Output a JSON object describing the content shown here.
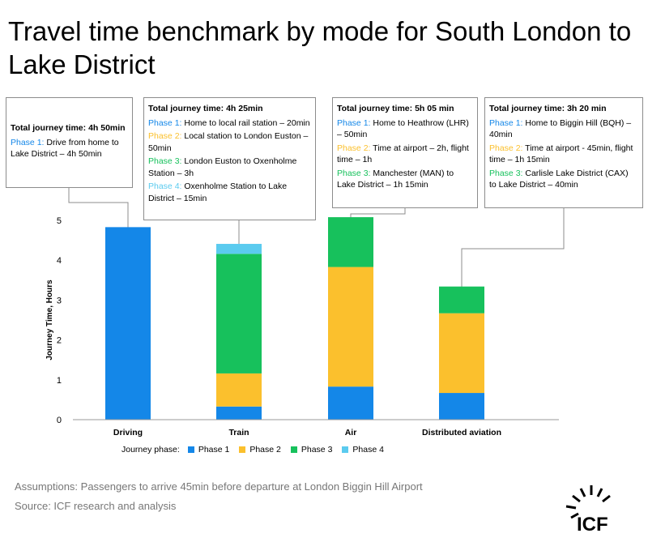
{
  "title": "Travel time benchmark by mode for South London to Lake District",
  "colors": {
    "phase1": "#1487e8",
    "phase2": "#fbc02d",
    "phase3": "#17c15c",
    "phase4": "#5bcbef",
    "axis": "#999999",
    "callout_border": "#8c8c8c"
  },
  "callouts": [
    {
      "total": "Total journey time: 4h 50min",
      "phases": [
        {
          "label": "Phase 1:",
          "text": " Drive from home to Lake District – 4h 50min",
          "color": "#1487e8"
        }
      ]
    },
    {
      "total": "Total journey time: 4h 25min",
      "phases": [
        {
          "label": "Phase 1:",
          "text": " Home to local rail station – 20min",
          "color": "#1487e8"
        },
        {
          "label": "Phase 2:",
          "text": " Local station to London Euston – 50min",
          "color": "#fbc02d"
        },
        {
          "label": "Phase 3:",
          "text": " London Euston to Oxenholme Station – 3h",
          "color": "#17c15c"
        },
        {
          "label": "Phase 4:",
          "text": " Oxenholme Station to Lake District – 15min",
          "color": "#5bcbef"
        }
      ]
    },
    {
      "total": "Total journey time: 5h 05 min",
      "phases": [
        {
          "label": "Phase 1:",
          "text": " Home to Heathrow (LHR) – 50min",
          "color": "#1487e8"
        },
        {
          "label": "Phase 2:",
          "text": " Time at airport – 2h, flight time – 1h",
          "color": "#fbc02d"
        },
        {
          "label": "Phase 3:",
          "text": " Manchester (MAN) to Lake District – 1h 15min",
          "color": "#17c15c"
        }
      ]
    },
    {
      "total": "Total journey time: 3h 20 min",
      "phases": [
        {
          "label": "Phase 1:",
          "text": " Home to Biggin Hill (BQH) – 40min",
          "color": "#1487e8"
        },
        {
          "label": "Phase 2:",
          "text": " Time at airport  - 45min, flight time – 1h 15min",
          "color": "#fbc02d"
        },
        {
          "label": "Phase 3:",
          "text": " Carlisle Lake District (CAX) to Lake District – 40min",
          "color": "#17c15c"
        }
      ]
    }
  ],
  "legend": {
    "title": "Journey phase:",
    "items": [
      {
        "label": "Phase 1",
        "color": "#1487e8"
      },
      {
        "label": "Phase 2",
        "color": "#fbc02d"
      },
      {
        "label": "Phase 3",
        "color": "#17c15c"
      },
      {
        "label": "Phase 4",
        "color": "#5bcbef"
      }
    ]
  },
  "footer": {
    "assumptions": "Assumptions: Passengers to arrive 45min before departure at London Biggin Hill Airport",
    "source": "Source: ICF research and analysis"
  },
  "logo_text": "ICF",
  "chart_data": {
    "type": "bar",
    "stacked": true,
    "categories": [
      "Driving",
      "Train",
      "Air",
      "Distributed aviation"
    ],
    "series": [
      {
        "name": "Phase 1",
        "color": "#1487e8",
        "values": [
          4.83,
          0.33,
          0.83,
          0.67
        ]
      },
      {
        "name": "Phase 2",
        "color": "#fbc02d",
        "values": [
          0,
          0.83,
          3.0,
          2.0
        ]
      },
      {
        "name": "Phase 3",
        "color": "#17c15c",
        "values": [
          0,
          3.0,
          1.25,
          0.67
        ]
      },
      {
        "name": "Phase 4",
        "color": "#5bcbef",
        "values": [
          0,
          0.25,
          0,
          0
        ]
      }
    ],
    "xlabel": "",
    "ylabel": "Journey Time, Hours",
    "ylim": [
      0,
      5
    ],
    "yticks": [
      0,
      1,
      2,
      3,
      4,
      5
    ],
    "grid": false,
    "legend_position": "bottom"
  }
}
